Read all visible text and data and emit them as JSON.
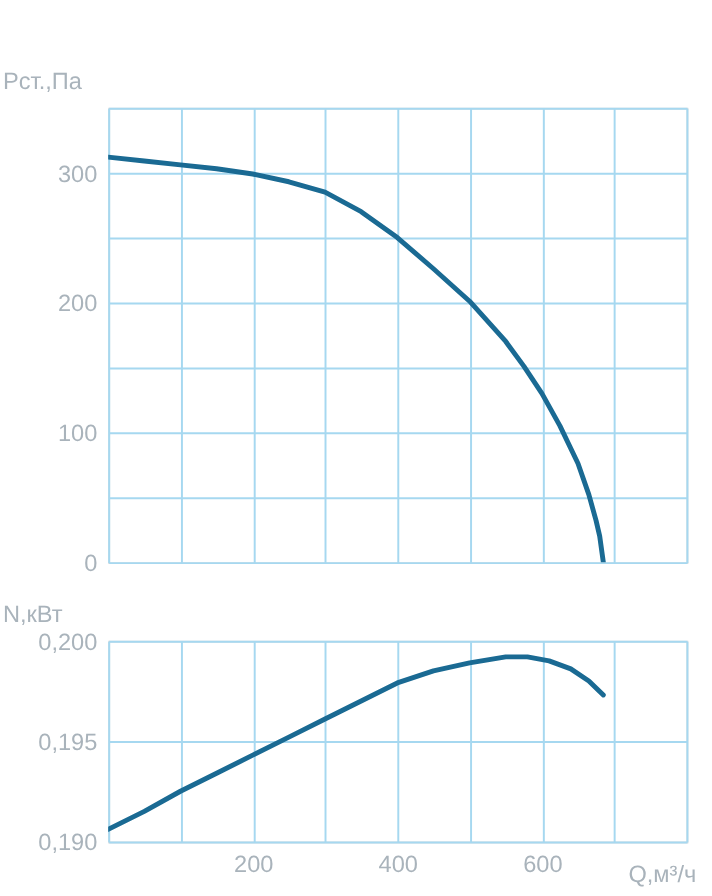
{
  "chart_data": [
    {
      "type": "line",
      "ylabel": "Pст.,Па",
      "legend": false,
      "grid": true,
      "tick_labels": "y",
      "line_style": "solid",
      "x": [
        0,
        50,
        100,
        150,
        200,
        250,
        300,
        350,
        400,
        450,
        500,
        550,
        575,
        600,
        625,
        650,
        665,
        675,
        680,
        685
      ],
      "series": [
        {
          "color": "#1a6a93",
          "values": [
            312,
            309,
            306,
            303,
            299,
            293,
            285,
            270,
            250,
            226,
            201,
            170,
            151,
            130,
            105,
            76,
            52,
            32,
            20,
            0
          ]
        }
      ],
      "xlim": [
        0,
        800
      ],
      "xticks": [
        0,
        100,
        200,
        300,
        400,
        500,
        600,
        700,
        800
      ],
      "ylim": [
        0,
        350
      ],
      "yticks": [
        0,
        {
          "value": 50,
          "label": null
        },
        100,
        {
          "value": 150,
          "label": null
        },
        200,
        {
          "value": 250,
          "label": null
        },
        300,
        {
          "value": 350,
          "label": null
        }
      ]
    },
    {
      "type": "line",
      "ylabel": "N,кВт",
      "xlabel": "Q,м³/ч",
      "legend": false,
      "grid": true,
      "line_style": "solid",
      "x": [
        0,
        50,
        100,
        150,
        200,
        250,
        300,
        350,
        400,
        450,
        500,
        550,
        580,
        610,
        640,
        665,
        685
      ],
      "series": [
        {
          "color": "#1a6a93",
          "values": [
            0.1906,
            0.1915,
            0.1925,
            0.1934,
            0.1943,
            0.1952,
            0.1961,
            0.197,
            0.1979,
            0.1985,
            0.1989,
            0.1992,
            0.1992,
            0.199,
            0.1986,
            0.198,
            0.1973
          ]
        }
      ],
      "xlim": [
        0,
        800
      ],
      "xticks": [
        {
          "value": 0,
          "label": null
        },
        {
          "value": 100,
          "label": null
        },
        200,
        {
          "value": 300,
          "label": null
        },
        400,
        {
          "value": 500,
          "label": null
        },
        600,
        {
          "value": 700,
          "label": null
        },
        {
          "value": 800,
          "label": null
        }
      ],
      "ylim": [
        0.19,
        0.2
      ],
      "yticks": [
        {
          "value": 0.19,
          "label": "0,190"
        },
        {
          "value": 0.195,
          "label": "0,195"
        },
        {
          "value": 0.2,
          "label": "0,200"
        }
      ]
    }
  ]
}
